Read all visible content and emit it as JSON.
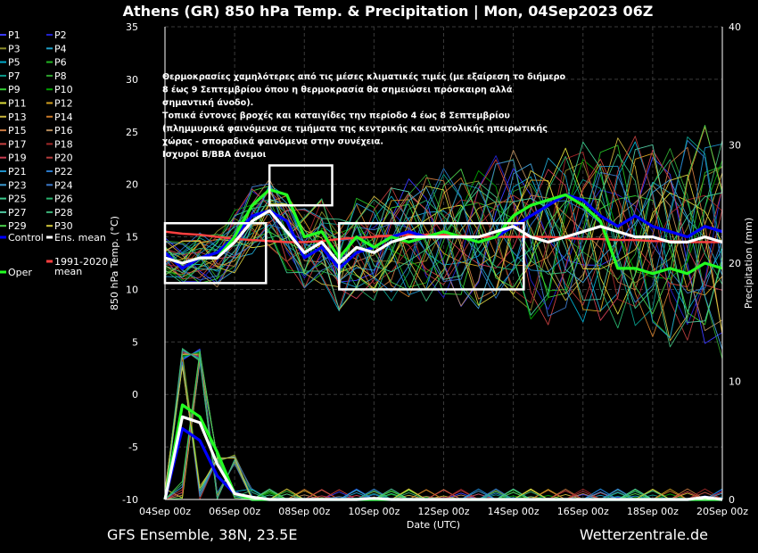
{
  "chart_data": {
    "type": "line",
    "title": "Athens  (GR)  850 hPa Temp. & Precipitation | Mon, 04Sep2023 06Z",
    "xlabel": "Date (UTC)",
    "ylabel": "850 hPa Temp. (°C)",
    "y2label": "Precipitation (mm)",
    "x_ticks": [
      "04Sep 00z",
      "06Sep 00z",
      "08Sep 00z",
      "10Sep 00z",
      "12Sep 00z",
      "14Sep 00z",
      "16Sep 00z",
      "18Sep 00z",
      "20Sep 00z"
    ],
    "xlim": [
      "04Sep 00z",
      "20Sep 00z"
    ],
    "ylim": [
      -10,
      35
    ],
    "y_ticks": [
      -10,
      -5,
      0,
      5,
      10,
      15,
      20,
      25,
      30,
      35
    ],
    "y2lim": [
      0,
      40
    ],
    "y2_ticks": [
      0,
      10,
      20,
      30,
      40
    ],
    "grid": true,
    "legend_placement": "left",
    "footer_left": "GFS Ensemble, 38N, 23.5E",
    "footer_right": "Wetterzentrale.de",
    "annotation": [
      "Θερμοκρασίες χαμηλότερες από τις μέσες κλιματικές τιμές (με εξαίρεση το διήμερο",
      "8 έως 9 Σεπτεμβρίου όπου η θερμοκρασία θα σημειώσει πρόσκαιρη αλλά",
      "σημαντική άνοδο).",
      "Τοπικά έντονες βροχές και καταιγίδες την περίοδο 4 έως 8 Σεπτεμβρίου",
      "(πλημμυρικά φαινόμενα σε τμήματα της κεντρικής και ανατολικής ηπειρωτικής",
      "χώρας - σποραδικά φαινόμενα στην συνέχεια.",
      "Ισχυροί Β/ΒΒΑ άνεμοι"
    ],
    "x_days": [
      0,
      0.5,
      1,
      1.5,
      2,
      2.5,
      3,
      3.5,
      4,
      4.5,
      5,
      5.5,
      6,
      6.5,
      7,
      7.5,
      8,
      8.5,
      9,
      9.5,
      10,
      10.5,
      11,
      11.5,
      12,
      12.5,
      13,
      13.5,
      14,
      14.5,
      15,
      15.5,
      16
    ],
    "legend_pairs": [
      [
        "P1",
        "P2"
      ],
      [
        "P3",
        "P4"
      ],
      [
        "P5",
        "P6"
      ],
      [
        "P7",
        "P8"
      ],
      [
        "P9",
        "P10"
      ],
      [
        "P11",
        "P12"
      ],
      [
        "P13",
        "P14"
      ],
      [
        "P15",
        "P16"
      ],
      [
        "P17",
        "P18"
      ],
      [
        "P19",
        "P20"
      ],
      [
        "P21",
        "P22"
      ],
      [
        "P23",
        "P24"
      ],
      [
        "P25",
        "P26"
      ],
      [
        "P27",
        "P28"
      ],
      [
        "P29",
        "P30"
      ]
    ],
    "legend_special": [
      "Control",
      "Ens. mean",
      "Oper",
      "1991-2020 mean"
    ],
    "legend_special_lines": [
      [
        "Control"
      ],
      [
        "Ens. mean"
      ],
      [
        "Oper"
      ],
      [
        "1991-2020",
        "mean"
      ]
    ],
    "member_colors": [
      "#3a3aff",
      "#2222cc",
      "#8b8b2a",
      "#1ea0c8",
      "#00aacc",
      "#22b622",
      "#0a9a8a",
      "#2fa32f",
      "#33cc33",
      "#00a000",
      "#dcdc3a",
      "#d2a020",
      "#c8b43c",
      "#c87828",
      "#c87840",
      "#b48a5a",
      "#c84040",
      "#a02828",
      "#c83c50",
      "#b43c3c",
      "#1e90c8",
      "#2a78c8",
      "#3c9ad2",
      "#3c78c8",
      "#3cc88c",
      "#28b46e",
      "#50c8a0",
      "#3cb478",
      "#4cd24c",
      "#d2c83c"
    ],
    "series": [
      {
        "name": "Control",
        "color": "#0000ff",
        "values": [
          13.5,
          12,
          13,
          13.5,
          15,
          17,
          17.5,
          16.5,
          13,
          14,
          12,
          13.5,
          14,
          15,
          15.5,
          15,
          15,
          15,
          14.5,
          15,
          16,
          17,
          18,
          19,
          18.5,
          17,
          16,
          17,
          16,
          15.5,
          15,
          16,
          15.5
        ],
        "precip": [
          0,
          6,
          5,
          2,
          0.5,
          0,
          0,
          0,
          0,
          0,
          0,
          0,
          0,
          0,
          0,
          0,
          0,
          0,
          0,
          0,
          0,
          0,
          0,
          0,
          0,
          0,
          0,
          0,
          0,
          0,
          0,
          0,
          0
        ]
      },
      {
        "name": "Ens. mean",
        "color": "#ffffff",
        "values": [
          13,
          12.5,
          13,
          13,
          14.5,
          16.5,
          17.5,
          15.5,
          13.5,
          14.5,
          12.5,
          14,
          13.5,
          14.5,
          15,
          15,
          15,
          15,
          15,
          15.5,
          16,
          15,
          14.5,
          15,
          15.5,
          16,
          15.5,
          15,
          15,
          14.5,
          14.5,
          15,
          14.5
        ],
        "precip": [
          0,
          7,
          6.5,
          3,
          0.5,
          0.2,
          0,
          0,
          0,
          0,
          0,
          0,
          0.1,
          0,
          0,
          0,
          0,
          0,
          0,
          0,
          0,
          0,
          0,
          0,
          0,
          0,
          0,
          0,
          0,
          0,
          0,
          0.2,
          0
        ]
      },
      {
        "name": "Oper",
        "color": "#22ff22",
        "values": [
          13,
          12.5,
          13,
          13,
          15,
          18,
          19.5,
          19,
          15,
          15.5,
          13,
          15,
          14,
          15,
          14.5,
          15,
          15.5,
          15,
          14.5,
          15,
          17,
          18,
          18.5,
          19,
          18,
          16.5,
          12,
          12,
          11.5,
          12,
          11.5,
          12.5,
          12
        ],
        "precip": [
          0,
          8,
          7,
          4,
          0.5,
          0,
          0,
          0,
          0,
          0,
          0,
          0,
          0,
          0,
          0,
          0,
          0,
          0,
          0,
          0,
          0,
          0,
          0,
          0,
          0,
          0,
          0,
          0,
          0,
          0,
          0,
          0,
          0
        ]
      },
      {
        "name": "1991-2020 mean",
        "color": "#ff4040",
        "values": [
          15.5,
          15.3,
          15.2,
          15,
          14.8,
          14.7,
          14.6,
          14.5,
          14.5,
          14.6,
          14.8,
          14.9,
          15,
          15.1,
          15.2,
          15.2,
          15.2,
          15.1,
          15,
          15,
          15,
          15,
          15,
          14.9,
          14.8,
          14.8,
          14.7,
          14.7,
          14.6,
          14.6,
          14.5,
          14.5,
          14.5
        ],
        "precip": []
      }
    ]
  }
}
